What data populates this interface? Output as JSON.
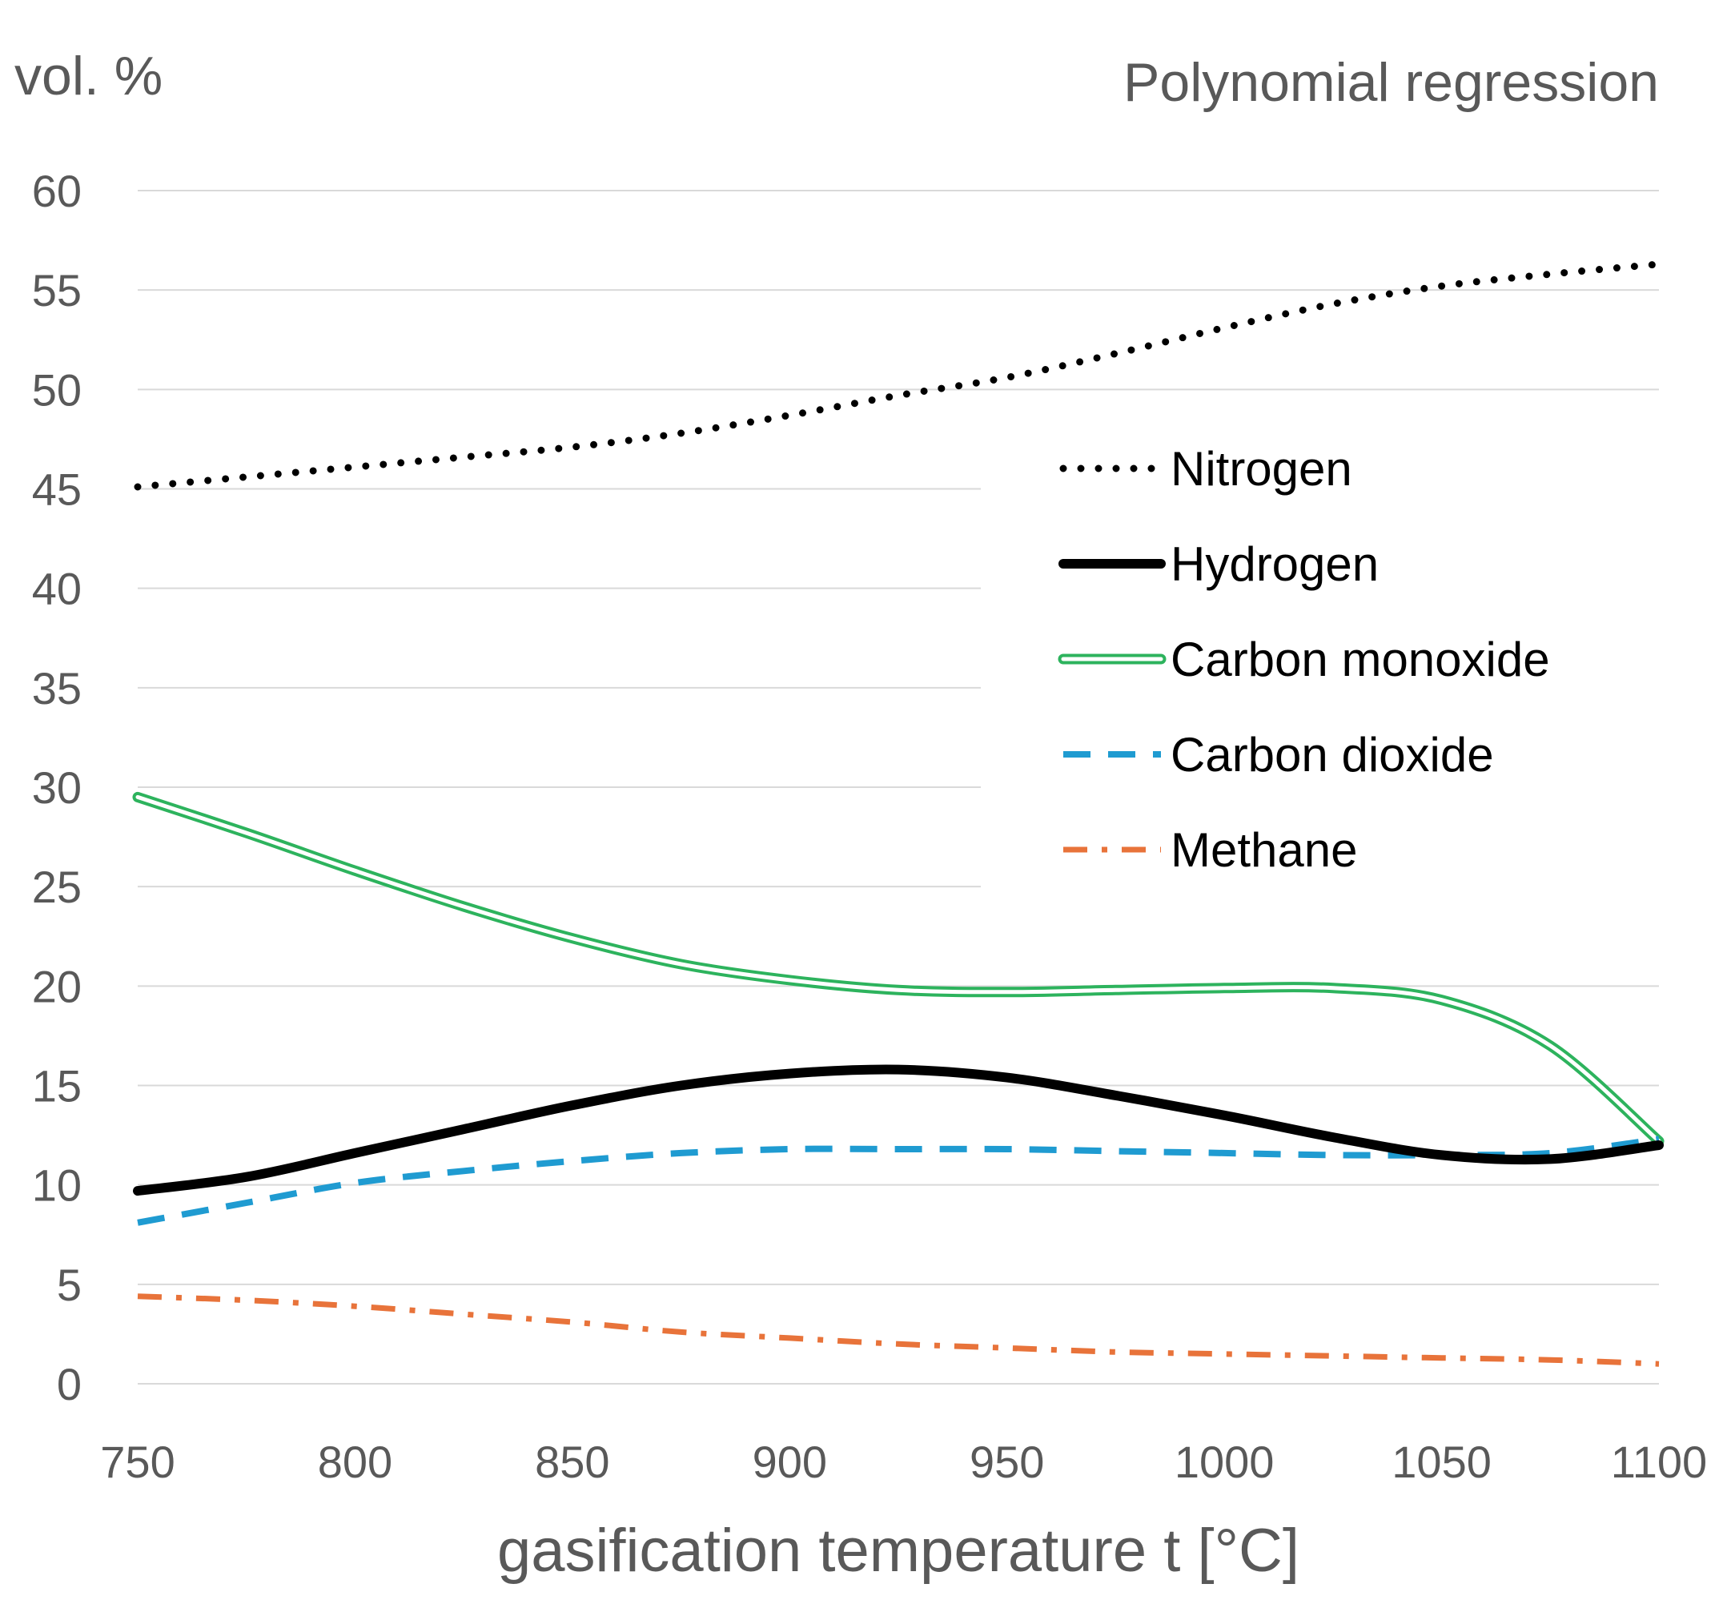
{
  "chart_data": {
    "type": "line",
    "title": "Polynomial regression",
    "ylabel": "vol. %",
    "xlabel": "gasification temperature t [°C]",
    "xlim": [
      750,
      1100
    ],
    "ylim": [
      0,
      60
    ],
    "xticks": [
      750,
      800,
      850,
      900,
      950,
      1000,
      1050,
      1100
    ],
    "yticks": [
      0,
      5,
      10,
      15,
      20,
      25,
      30,
      35,
      40,
      45,
      50,
      55,
      60
    ],
    "grid": "horizontal",
    "legend_position": "right",
    "x": [
      750,
      775,
      800,
      825,
      850,
      875,
      900,
      925,
      950,
      975,
      1000,
      1025,
      1050,
      1075,
      1100
    ],
    "series": [
      {
        "name": "Nitrogen",
        "style": "dotted",
        "color": "#000000",
        "values": [
          45.1,
          45.6,
          46.1,
          46.6,
          47.1,
          47.8,
          48.7,
          49.7,
          50.6,
          51.8,
          53.1,
          54.3,
          55.2,
          55.8,
          56.3
        ]
      },
      {
        "name": "Hydrogen",
        "style": "solid-thick",
        "color": "#000000",
        "values": [
          9.7,
          10.4,
          11.6,
          12.8,
          14.0,
          15.0,
          15.6,
          15.8,
          15.4,
          14.5,
          13.5,
          12.4,
          11.5,
          11.3,
          12.0
        ]
      },
      {
        "name": "Carbon monoxide",
        "style": "double",
        "color": "#2db35d",
        "values": [
          29.5,
          27.7,
          25.8,
          24.0,
          22.4,
          21.1,
          20.3,
          19.8,
          19.7,
          19.8,
          19.9,
          19.9,
          19.3,
          17.0,
          12.2
        ]
      },
      {
        "name": "Carbon dioxide",
        "style": "dashed",
        "color": "#1f9bd1",
        "values": [
          8.1,
          9.1,
          10.1,
          10.7,
          11.2,
          11.6,
          11.8,
          11.8,
          11.8,
          11.7,
          11.6,
          11.5,
          11.5,
          11.6,
          12.3
        ]
      },
      {
        "name": "Methane",
        "style": "dash-dot",
        "color": "#e8733a",
        "values": [
          4.4,
          4.2,
          3.9,
          3.5,
          3.1,
          2.6,
          2.3,
          2.0,
          1.8,
          1.6,
          1.5,
          1.4,
          1.3,
          1.2,
          1.0
        ]
      }
    ]
  }
}
